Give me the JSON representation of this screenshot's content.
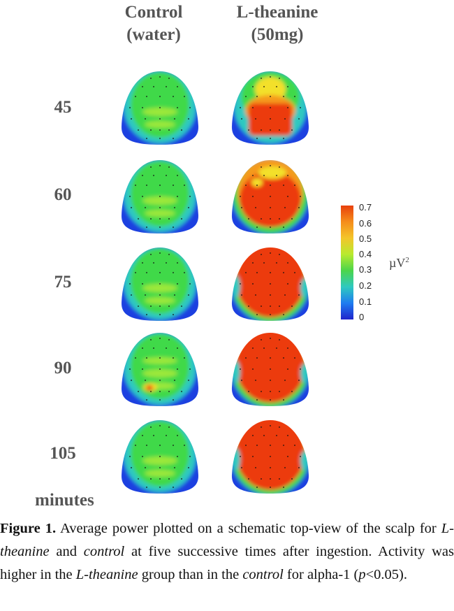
{
  "columns": [
    {
      "line1": "Control",
      "line2": "(water)"
    },
    {
      "line1": "L-theanine",
      "line2": "(50mg)"
    }
  ],
  "time_labels": [
    "45",
    "60",
    "75",
    "90",
    "105"
  ],
  "time_unit": "minutes",
  "colorbar": {
    "ticks": [
      "0.7",
      "0.6",
      "0.5",
      "0.4",
      "0.3",
      "0.2",
      "0.1",
      "0"
    ],
    "unit_base": "µV",
    "unit_exp": "2",
    "colors": [
      "#e8400c",
      "#f58d1b",
      "#f3c52a",
      "#b8ea2e",
      "#4bd54b",
      "#2ec9c0",
      "#1e7cf0",
      "#1f24cc"
    ]
  },
  "maps": {
    "control": [
      {
        "time": "45",
        "level": "low"
      },
      {
        "time": "60",
        "level": "low"
      },
      {
        "time": "75",
        "level": "low"
      },
      {
        "time": "90",
        "level": "low-hotspot"
      },
      {
        "time": "105",
        "level": "low"
      }
    ],
    "theanine": [
      {
        "time": "45",
        "level": "mixed"
      },
      {
        "time": "60",
        "level": "mixed-high"
      },
      {
        "time": "75",
        "level": "high"
      },
      {
        "time": "90",
        "level": "high"
      },
      {
        "time": "105",
        "level": "high"
      }
    ]
  },
  "caption": {
    "label": "Figure 1.",
    "parts": [
      {
        "text": "  Average power plotted on a schematic top-view of the scalp for ",
        "italic": false
      },
      {
        "text": "L-theanine",
        "italic": true
      },
      {
        "text": " and ",
        "italic": false
      },
      {
        "text": "control",
        "italic": true
      },
      {
        "text": " at five successive times after ingestion. Activity was higher in the ",
        "italic": false
      },
      {
        "text": "L-theanine",
        "italic": true
      },
      {
        "text": " group than in the ",
        "italic": false
      },
      {
        "text": "control",
        "italic": true
      },
      {
        "text": " for alpha-1 (",
        "italic": false
      },
      {
        "text": "p",
        "italic": true
      },
      {
        "text": "<0.05).",
        "italic": false
      }
    ]
  }
}
